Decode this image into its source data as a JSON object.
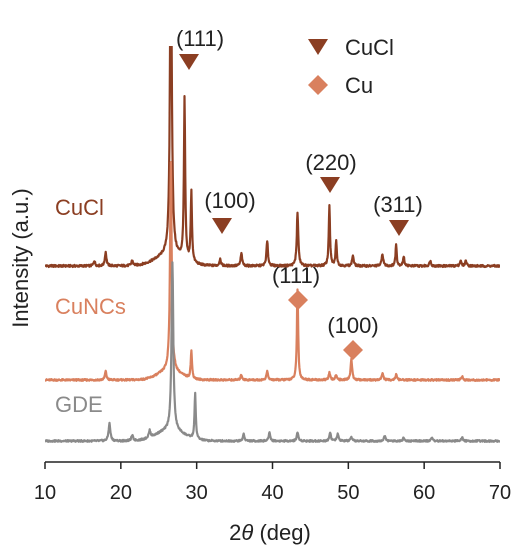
{
  "chart_data": {
    "type": "line",
    "xlabel_prefix": "2",
    "xlabel_symbol": "θ",
    "xlabel_suffix": " (deg)",
    "ylabel": "Intensity (a.u.)",
    "xlim": [
      10,
      70
    ],
    "x_ticks": [
      10,
      20,
      30,
      40,
      50,
      60,
      70
    ],
    "y_ticks_shown": false,
    "grid": false,
    "legend_position": "top-right",
    "legend": [
      {
        "label": "CuCl",
        "marker": "triangle-down",
        "color": "#8b3e22"
      },
      {
        "label": "Cu",
        "marker": "diamond",
        "color": "#d9805e"
      }
    ],
    "series": [
      {
        "name": "CuCl",
        "color": "#8b3e22",
        "baseline": 0.0,
        "noise": 0.6,
        "peaks": [
          {
            "x": 16.5,
            "h": 1.5,
            "w": 0.12
          },
          {
            "x": 18.0,
            "h": 4.0,
            "w": 0.12
          },
          {
            "x": 21.5,
            "h": 1.5,
            "w": 0.12
          },
          {
            "x": 26.6,
            "h": 95.0,
            "w": 0.14
          },
          {
            "x": 28.4,
            "h": 46.0,
            "w": 0.1
          },
          {
            "x": 29.3,
            "h": 20.0,
            "w": 0.1
          },
          {
            "x": 33.1,
            "h": 2.0,
            "w": 0.12
          },
          {
            "x": 35.9,
            "h": 3.5,
            "w": 0.12
          },
          {
            "x": 39.3,
            "h": 7.0,
            "w": 0.12
          },
          {
            "x": 43.3,
            "h": 15.0,
            "w": 0.12
          },
          {
            "x": 47.5,
            "h": 17.0,
            "w": 0.1
          },
          {
            "x": 48.4,
            "h": 7.0,
            "w": 0.1
          },
          {
            "x": 50.6,
            "h": 3.0,
            "w": 0.12
          },
          {
            "x": 54.5,
            "h": 3.5,
            "w": 0.12
          },
          {
            "x": 56.3,
            "h": 6.0,
            "w": 0.1
          },
          {
            "x": 57.3,
            "h": 2.5,
            "w": 0.12
          },
          {
            "x": 60.8,
            "h": 1.5,
            "w": 0.12
          },
          {
            "x": 64.8,
            "h": 1.5,
            "w": 0.12
          },
          {
            "x": 65.5,
            "h": 1.5,
            "w": 0.12
          }
        ],
        "broad": [
          {
            "x": 26.4,
            "h": 3.0,
            "w": 1.8
          }
        ]
      },
      {
        "name": "CuNCs",
        "color": "#d9805e",
        "baseline": 0.0,
        "noise": 0.5,
        "peaks": [
          {
            "x": 18.0,
            "h": 2.5,
            "w": 0.12
          },
          {
            "x": 26.6,
            "h": 60.0,
            "w": 0.13
          },
          {
            "x": 29.3,
            "h": 8.0,
            "w": 0.1
          },
          {
            "x": 35.9,
            "h": 1.5,
            "w": 0.12
          },
          {
            "x": 39.3,
            "h": 2.5,
            "w": 0.12
          },
          {
            "x": 43.3,
            "h": 26.0,
            "w": 0.1
          },
          {
            "x": 47.5,
            "h": 2.0,
            "w": 0.12
          },
          {
            "x": 48.4,
            "h": 1.5,
            "w": 0.12
          },
          {
            "x": 50.4,
            "h": 6.0,
            "w": 0.12
          },
          {
            "x": 54.5,
            "h": 2.0,
            "w": 0.12
          },
          {
            "x": 56.3,
            "h": 1.5,
            "w": 0.12
          },
          {
            "x": 65.0,
            "h": 1.0,
            "w": 0.12
          }
        ],
        "broad": [
          {
            "x": 26.4,
            "h": 2.5,
            "w": 1.5
          }
        ]
      },
      {
        "name": "GDE",
        "color": "#8a8a8a",
        "baseline": 0.0,
        "noise": 0.5,
        "peaks": [
          {
            "x": 18.5,
            "h": 5.0,
            "w": 0.14
          },
          {
            "x": 21.5,
            "h": 1.5,
            "w": 0.14
          },
          {
            "x": 23.8,
            "h": 2.0,
            "w": 0.14
          },
          {
            "x": 26.8,
            "h": 48.0,
            "w": 0.14
          },
          {
            "x": 29.8,
            "h": 13.0,
            "w": 0.1
          },
          {
            "x": 36.2,
            "h": 2.0,
            "w": 0.12
          },
          {
            "x": 39.6,
            "h": 2.5,
            "w": 0.12
          },
          {
            "x": 43.3,
            "h": 2.5,
            "w": 0.12
          },
          {
            "x": 47.6,
            "h": 2.5,
            "w": 0.12
          },
          {
            "x": 48.6,
            "h": 2.0,
            "w": 0.12
          },
          {
            "x": 50.4,
            "h": 1.0,
            "w": 0.12
          },
          {
            "x": 54.8,
            "h": 1.5,
            "w": 0.12
          },
          {
            "x": 57.3,
            "h": 1.0,
            "w": 0.12
          },
          {
            "x": 61.0,
            "h": 1.0,
            "w": 0.12
          },
          {
            "x": 65.0,
            "h": 1.0,
            "w": 0.12
          }
        ],
        "broad": [
          {
            "x": 26.5,
            "h": 3.0,
            "w": 1.8
          }
        ]
      }
    ],
    "annotations": [
      {
        "text": "(111)",
        "x": 28.4,
        "series": "CuCl",
        "marker": "triangle-down",
        "color": "#8b3e22"
      },
      {
        "text": "(100)",
        "x": 33.1,
        "series": "CuCl",
        "marker": "triangle-down",
        "color": "#8b3e22"
      },
      {
        "text": "(220)",
        "x": 47.5,
        "series": "CuCl",
        "marker": "triangle-down",
        "color": "#8b3e22"
      },
      {
        "text": "(311)",
        "x": 56.3,
        "series": "CuCl",
        "marker": "triangle-down",
        "color": "#8b3e22"
      },
      {
        "text": "(111)",
        "x": 43.3,
        "series": "CuNCs",
        "marker": "diamond",
        "color": "#d9805e"
      },
      {
        "text": "(100)",
        "x": 50.4,
        "series": "CuNCs",
        "marker": "diamond",
        "color": "#d9805e"
      }
    ]
  }
}
